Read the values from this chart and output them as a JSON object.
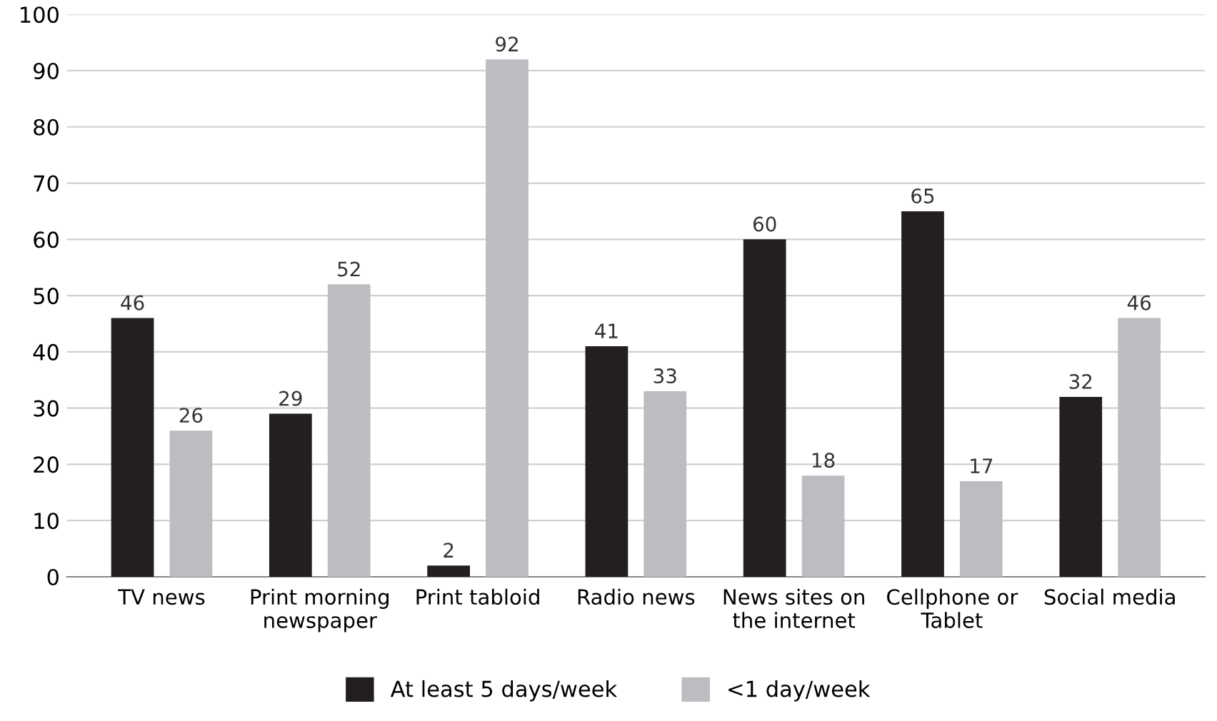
{
  "chart_data": {
    "type": "bar",
    "categories": [
      "TV news",
      "Print morning\nnewspaper",
      "Print tabloid",
      "Radio news",
      "News sites on\nthe internet",
      "Cellphone or\nTablet",
      "Social media"
    ],
    "series": [
      {
        "name": "At least 5 days/week",
        "color": "#231f20",
        "values": [
          46,
          29,
          2,
          41,
          60,
          65,
          32
        ]
      },
      {
        "name": "<1 day/week",
        "color": "#bcbdc0",
        "values": [
          26,
          52,
          92,
          33,
          18,
          17,
          46
        ]
      }
    ],
    "ylim": [
      0,
      100
    ],
    "yticks": [
      0,
      10,
      20,
      30,
      40,
      50,
      60,
      70,
      80,
      90,
      100
    ],
    "grid": "y",
    "legend": "bottom",
    "data_labels": true
  }
}
